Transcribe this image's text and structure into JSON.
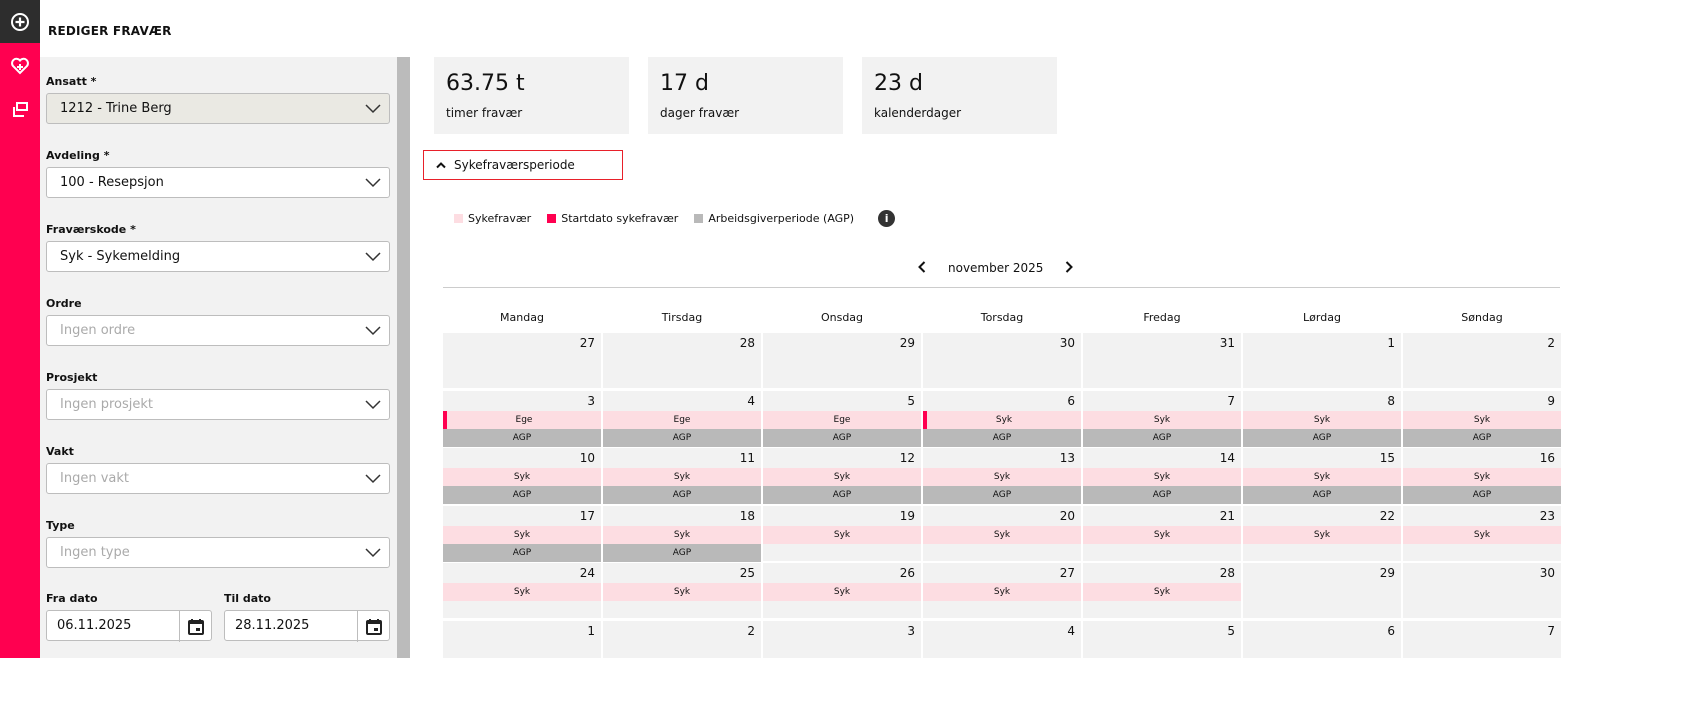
{
  "sidebar": {
    "icons": [
      "add-circle-icon",
      "heart-plus-icon",
      "copy-icon"
    ]
  },
  "title": "REDIGER FRAVÆR",
  "form": {
    "fields": [
      {
        "label": "Ansatt *",
        "value": "1212 - Trine Berg",
        "disabled": true,
        "placeholder": false
      },
      {
        "label": "Avdeling *",
        "value": "100 - Resepsjon",
        "disabled": false,
        "placeholder": false
      },
      {
        "label": "Fraværskode *",
        "value": "Syk - Sykemelding",
        "disabled": false,
        "placeholder": false
      },
      {
        "label": "Ordre",
        "value": "Ingen ordre",
        "disabled": false,
        "placeholder": true
      },
      {
        "label": "Prosjekt",
        "value": "Ingen prosjekt",
        "disabled": false,
        "placeholder": true
      },
      {
        "label": "Vakt",
        "value": "Ingen vakt",
        "disabled": false,
        "placeholder": true
      },
      {
        "label": "Type",
        "value": "Ingen type",
        "disabled": false,
        "placeholder": true
      }
    ],
    "from_label": "Fra dato",
    "from_value": "06.11.2025",
    "to_label": "Til dato",
    "to_value": "28.11.2025"
  },
  "stats": [
    {
      "value": "63.75 t",
      "label": "timer fravær"
    },
    {
      "value": "17 d",
      "label": "dager fravær"
    },
    {
      "value": "23 d",
      "label": "kalenderdager"
    }
  ],
  "section": {
    "label": "Sykefraværsperiode"
  },
  "legend": [
    {
      "label": "Sykefravær",
      "color": "#fddde2"
    },
    {
      "label": "Startdato sykefravær",
      "color": "#ff0050"
    },
    {
      "label": "Arbeidsgiverperiode (AGP)",
      "color": "#b9b9b9"
    }
  ],
  "calendar": {
    "month": "november 2025",
    "weekdays": [
      "Mandag",
      "Tirsdag",
      "Onsdag",
      "Torsdag",
      "Fredag",
      "Lørdag",
      "Søndag"
    ],
    "weeks": [
      [
        {
          "d": "27"
        },
        {
          "d": "28"
        },
        {
          "d": "29"
        },
        {
          "d": "30"
        },
        {
          "d": "31"
        },
        {
          "d": "1"
        },
        {
          "d": "2"
        }
      ],
      [
        {
          "d": "3",
          "code": "Ege",
          "agp": "AGP",
          "start": true
        },
        {
          "d": "4",
          "code": "Ege",
          "agp": "AGP"
        },
        {
          "d": "5",
          "code": "Ege",
          "agp": "AGP"
        },
        {
          "d": "6",
          "code": "Syk",
          "agp": "AGP",
          "start": true
        },
        {
          "d": "7",
          "code": "Syk",
          "agp": "AGP"
        },
        {
          "d": "8",
          "code": "Syk",
          "agp": "AGP"
        },
        {
          "d": "9",
          "code": "Syk",
          "agp": "AGP"
        }
      ],
      [
        {
          "d": "10",
          "code": "Syk",
          "agp": "AGP"
        },
        {
          "d": "11",
          "code": "Syk",
          "agp": "AGP"
        },
        {
          "d": "12",
          "code": "Syk",
          "agp": "AGP"
        },
        {
          "d": "13",
          "code": "Syk",
          "agp": "AGP"
        },
        {
          "d": "14",
          "code": "Syk",
          "agp": "AGP"
        },
        {
          "d": "15",
          "code": "Syk",
          "agp": "AGP"
        },
        {
          "d": "16",
          "code": "Syk",
          "agp": "AGP"
        }
      ],
      [
        {
          "d": "17",
          "code": "Syk",
          "agp": "AGP"
        },
        {
          "d": "18",
          "code": "Syk",
          "agp": "AGP"
        },
        {
          "d": "19",
          "code": "Syk"
        },
        {
          "d": "20",
          "code": "Syk"
        },
        {
          "d": "21",
          "code": "Syk"
        },
        {
          "d": "22",
          "code": "Syk"
        },
        {
          "d": "23",
          "code": "Syk"
        }
      ],
      [
        {
          "d": "24",
          "code": "Syk"
        },
        {
          "d": "25",
          "code": "Syk"
        },
        {
          "d": "26",
          "code": "Syk"
        },
        {
          "d": "27",
          "code": "Syk"
        },
        {
          "d": "28",
          "code": "Syk"
        },
        {
          "d": "29"
        },
        {
          "d": "30"
        }
      ],
      [
        {
          "d": "1"
        },
        {
          "d": "2"
        },
        {
          "d": "3"
        },
        {
          "d": "4"
        },
        {
          "d": "5"
        },
        {
          "d": "6"
        },
        {
          "d": "7"
        }
      ]
    ]
  }
}
